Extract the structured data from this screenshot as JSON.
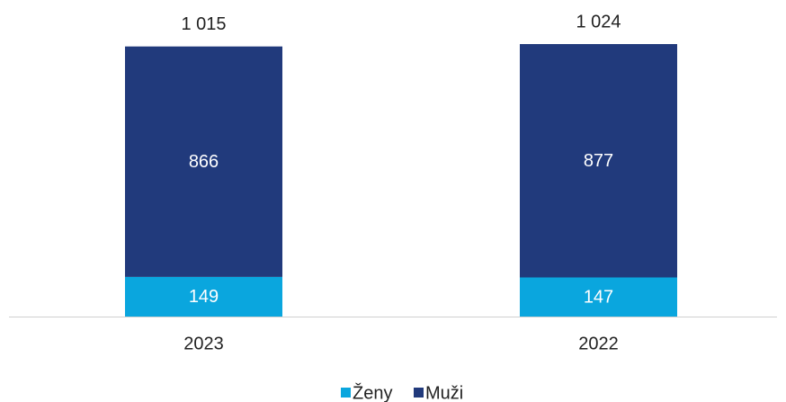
{
  "chart_data": {
    "type": "stacked_bar",
    "categories": [
      "2023",
      "2022"
    ],
    "series": [
      {
        "name": "Ženy",
        "color": "#0aa6de",
        "values": [
          149,
          147
        ]
      },
      {
        "name": "Muži",
        "color": "#213a7c",
        "values": [
          866,
          877
        ]
      }
    ],
    "totals": [
      1015,
      1024
    ],
    "total_labels": [
      "1 015",
      "1 024"
    ],
    "legend": "bottom"
  }
}
